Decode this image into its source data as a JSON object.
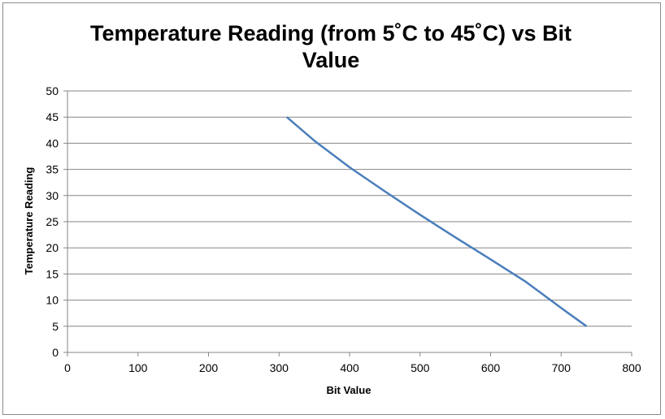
{
  "chart_data": {
    "type": "line",
    "title_line1": "Temperature Reading (from 5˚C to 45˚C) vs Bit",
    "title_line2": "Value",
    "xlabel": "Bit Value",
    "ylabel": "Temperature Reading",
    "xlim": [
      0,
      800
    ],
    "ylim": [
      0,
      50
    ],
    "x_ticks": [
      0,
      100,
      200,
      300,
      400,
      500,
      600,
      700,
      800
    ],
    "y_ticks": [
      0,
      5,
      10,
      15,
      20,
      25,
      30,
      35,
      40,
      45,
      50
    ],
    "grid": "horizontal",
    "legend": "none",
    "series": [
      {
        "color": "#4a7ebb",
        "x": [
          311,
          350,
          400,
          450,
          500,
          550,
          600,
          650,
          700,
          736
        ],
        "y": [
          45,
          40.5,
          35.4,
          30.8,
          26.3,
          22.0,
          17.8,
          13.5,
          8.5,
          5
        ]
      }
    ]
  }
}
